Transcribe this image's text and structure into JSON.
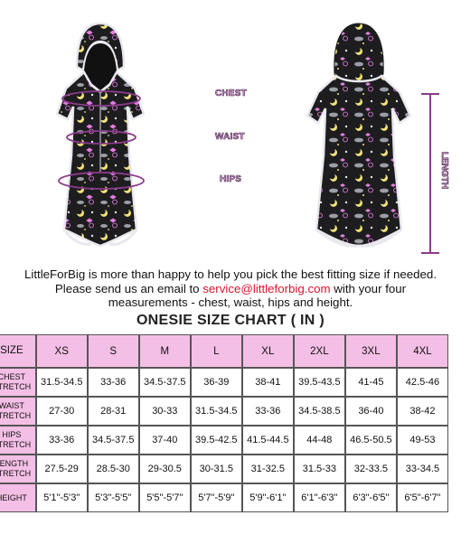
{
  "figure": {
    "labels": {
      "chest": "CHEST",
      "waist": "WAIST",
      "hips": "HIPS",
      "length": "LENGTH"
    },
    "colors": {
      "fabric": "#1d1d1f",
      "trim": "#e8e8ee",
      "accent_pink": "#e27fe0",
      "accent_yellow": "#f1e27a",
      "accent_gray": "#9b9ea6",
      "measure_line": "#8c3b8c"
    }
  },
  "info": {
    "line1": "LittleForBig is more than happy to help you pick the best fitting size if needed.",
    "line2_prefix": "Please send us an email to ",
    "email": "service@littleforbig.com",
    "line2_suffix": " with your four",
    "line3": "measurements - chest, waist, hips and height."
  },
  "chart": {
    "title": "ONESIE SIZE CHART ( IN )",
    "header_label": "SIZE",
    "sizes": [
      "XS",
      "S",
      "M",
      "L",
      "XL",
      "2XL",
      "3XL",
      "4XL"
    ],
    "rows": [
      {
        "label_line1": "CHEST",
        "label_line2": "STRETCH",
        "values": [
          "31.5-34.5",
          "33-36",
          "34.5-37.5",
          "36-39",
          "38-41",
          "39.5-43.5",
          "41-45",
          "42.5-46"
        ]
      },
      {
        "label_line1": "WAIST",
        "label_line2": "STRETCH",
        "values": [
          "27-30",
          "28-31",
          "30-33",
          "31.5-34.5",
          "33-36",
          "34.5-38.5",
          "36-40",
          "38-42"
        ]
      },
      {
        "label_line1": "HIPS",
        "label_line2": "STRETCH",
        "values": [
          "33-36",
          "34.5-37.5",
          "37-40",
          "39.5-42.5",
          "41.5-44.5",
          "44-48",
          "46.5-50.5",
          "49-53"
        ]
      },
      {
        "label_line1": "LENGTH",
        "label_line2": "STRETCH",
        "values": [
          "27.5-29",
          "28.5-30",
          "29-30.5",
          "30-31.5",
          "31-32.5",
          "31.5-33",
          "32-33.5",
          "33-34.5"
        ]
      },
      {
        "label_line1": "HEIGHT",
        "label_line2": "",
        "values": [
          "5'1\"-5'3\"",
          "5'3\"-5'5\"",
          "5'5\"-5'7\"",
          "5'7\"-5'9\"",
          "5'9\"-6'1\"",
          "6'1\"-6'3\"",
          "6'3\"-6'5\"",
          "6'5\"-6'7\""
        ]
      }
    ]
  }
}
